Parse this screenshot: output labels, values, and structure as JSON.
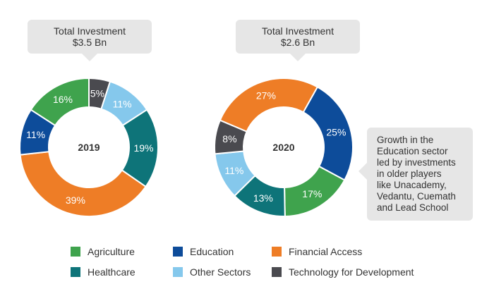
{
  "chart_data": [
    {
      "type": "pie",
      "subtype": "donut",
      "center_label": "2019",
      "callout": {
        "line1": "Total Investment",
        "line2": "$3.5 Bn"
      },
      "slices": [
        {
          "label": "Technology for Development",
          "value": 5,
          "text": "5%",
          "color": "#4a4a4f"
        },
        {
          "label": "Other Sectors",
          "value": 11,
          "text": "11%",
          "color": "#85c8ec"
        },
        {
          "label": "Healthcare",
          "value": 19,
          "text": "19%",
          "color": "#0e7479"
        },
        {
          "label": "Financial Access",
          "value": 39,
          "text": "39%",
          "color": "#ee7d26"
        },
        {
          "label": "Education",
          "value": 11,
          "text": "11%",
          "color": "#0d4c9a"
        },
        {
          "label": "Agriculture",
          "value": 16,
          "text": "16%",
          "color": "#3fa34d"
        }
      ]
    },
    {
      "type": "pie",
      "subtype": "donut",
      "center_label": "2020",
      "callout": {
        "line1": "Total Investment",
        "line2": "$2.6 Bn"
      },
      "slices": [
        {
          "label": "Financial Access",
          "value": 27,
          "text": "27%",
          "color": "#ee7d26"
        },
        {
          "label": "Education",
          "value": 25,
          "text": "25%",
          "color": "#0d4c9a"
        },
        {
          "label": "Agriculture",
          "value": 17,
          "text": "17%",
          "color": "#3fa34d"
        },
        {
          "label": "Healthcare",
          "value": 13,
          "text": "13%",
          "color": "#0e7479"
        },
        {
          "label": "Other Sectors",
          "value": 11,
          "text": "11%",
          "color": "#85c8ec"
        },
        {
          "label": "Technology for Development",
          "value": 8,
          "text": "8%",
          "color": "#4a4a4f"
        }
      ]
    }
  ],
  "note": {
    "lines": [
      "Growth in the",
      "Education sector",
      "led by investments",
      "in older players",
      "like Unacademy,",
      "Vedantu, Cuemath",
      "and Lead School"
    ]
  },
  "legend": [
    {
      "label": "Agriculture",
      "color": "#3fa34d"
    },
    {
      "label": "Education",
      "color": "#0d4c9a"
    },
    {
      "label": "Financial Access",
      "color": "#ee7d26"
    },
    {
      "label": "Healthcare",
      "color": "#0e7479"
    },
    {
      "label": "Other Sectors",
      "color": "#85c8ec"
    },
    {
      "label": "Technology for Development",
      "color": "#4a4a4f"
    }
  ]
}
